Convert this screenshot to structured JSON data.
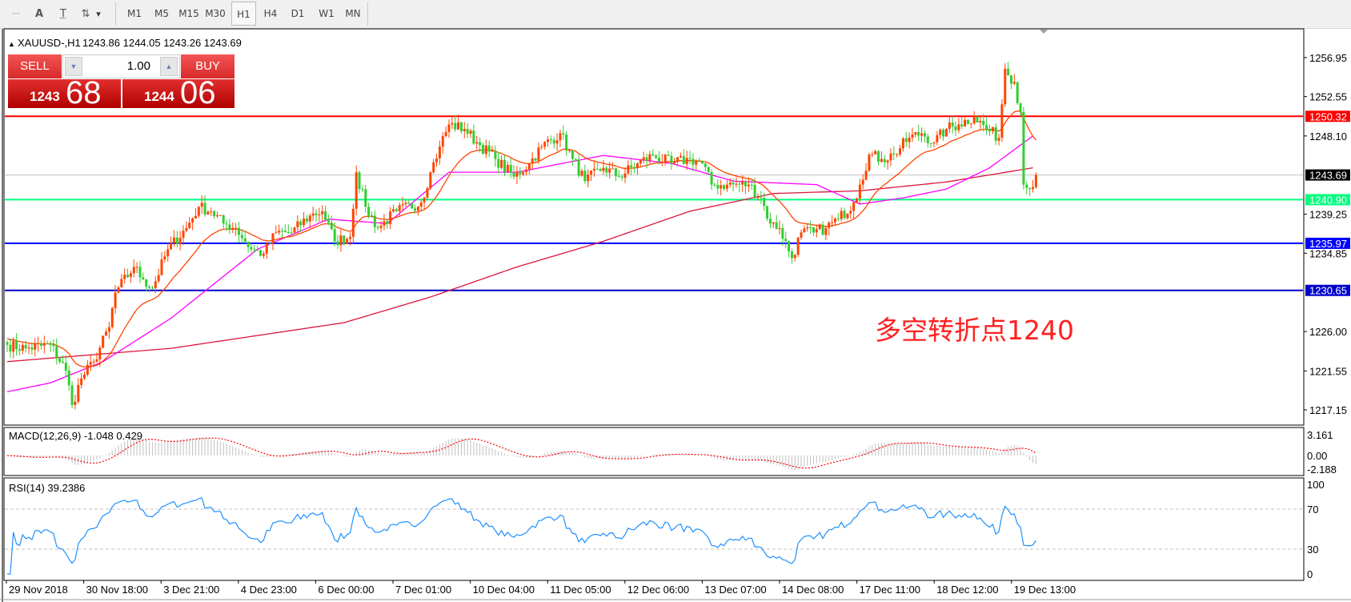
{
  "toolbar": {
    "tools": [
      {
        "name": "grid-properties-icon",
        "glyph": "⋯"
      },
      {
        "name": "text-icon",
        "glyph": "A"
      },
      {
        "name": "text-label-icon",
        "glyph": "T"
      },
      {
        "name": "arrows-icon",
        "glyph": "⇅"
      }
    ],
    "dropdown_glyph": "▾",
    "timeframes": [
      "M1",
      "M5",
      "M15",
      "M30",
      "H1",
      "H4",
      "D1",
      "W1",
      "MN"
    ],
    "selected_timeframe": "H1"
  },
  "chart_header": {
    "arrow": "▲",
    "symbol": "XAUUSD-,H1",
    "ohlc": "1243.86 1244.05 1243.26 1243.69"
  },
  "trade_panel": {
    "sell_label": "SELL",
    "buy_label": "BUY",
    "lot": "1.00",
    "sell_price_big": "1243",
    "sell_price_pips": "68",
    "buy_price_big": "1244",
    "buy_price_pips": "06",
    "color": "#cc1a1a"
  },
  "annotation": {
    "text": "多空转折点1240",
    "color": "#ff2020"
  },
  "price_axis": {
    "ticks": [
      "1256.95",
      "1252.55",
      "1248.10",
      "1239.25",
      "1234.85",
      "1226.00",
      "1221.55",
      "1217.15"
    ],
    "current": {
      "value": "1243.69",
      "color": "#000000"
    },
    "levels": [
      {
        "value": "1250.32",
        "color": "#ff0000"
      },
      {
        "value": "1240.90",
        "color": "#00ff7f"
      },
      {
        "value": "1235.97",
        "color": "#0000ff"
      },
      {
        "value": "1230.65",
        "color": "#0000cd"
      }
    ]
  },
  "time_axis": [
    "29 Nov 2018",
    "30 Nov 18:00",
    "3 Dec 21:00",
    "4 Dec 23:00",
    "6 Dec 00:00",
    "7 Dec 01:00",
    "10 Dec 04:00",
    "11 Dec 05:00",
    "12 Dec 06:00",
    "13 Dec 07:00",
    "14 Dec 08:00",
    "17 Dec 11:00",
    "18 Dec 12:00",
    "19 Dec 13:00"
  ],
  "macd": {
    "label": "MACD(12,26,9) -1.048 0.429",
    "ticks": [
      "3.161",
      "0.00",
      "-2.188"
    ],
    "signal_color": "#ff0000",
    "hist_color": "#c0c0c0"
  },
  "rsi": {
    "label": "RSI(14) 39.2386",
    "ticks": [
      "100",
      "70",
      "30",
      "0"
    ],
    "color": "#1e90ff"
  },
  "chart_data": {
    "type": "candlestick",
    "symbol": "XAUUSD",
    "timeframe": "H1",
    "ylim": [
      1215.5,
      1259.0
    ],
    "bull_color": "#ff4500",
    "bear_color": "#32cd32",
    "close_path_bar_price": [
      [
        0,
        1224.5
      ],
      [
        6,
        1224.1
      ],
      [
        14,
        1224.5
      ],
      [
        19,
        1221.6
      ],
      [
        21,
        1217.7
      ],
      [
        24,
        1220.7
      ],
      [
        28,
        1222.6
      ],
      [
        33,
        1226.5
      ],
      [
        35,
        1230.4
      ],
      [
        41,
        1233.3
      ],
      [
        44,
        1231.9
      ],
      [
        47,
        1230.9
      ],
      [
        52,
        1235.3
      ],
      [
        58,
        1237.7
      ],
      [
        62,
        1240.1
      ],
      [
        66,
        1239.6
      ],
      [
        70,
        1238.2
      ],
      [
        74,
        1237.7
      ],
      [
        79,
        1235.3
      ],
      [
        83,
        1234.8
      ],
      [
        87,
        1237.2
      ],
      [
        92,
        1237.2
      ],
      [
        98,
        1239.1
      ],
      [
        102,
        1239.6
      ],
      [
        106,
        1236.2
      ],
      [
        111,
        1236.7
      ],
      [
        113,
        1244.0
      ],
      [
        116,
        1240.1
      ],
      [
        120,
        1237.7
      ],
      [
        126,
        1239.6
      ],
      [
        134,
        1240.6
      ],
      [
        137,
        1244.0
      ],
      [
        140,
        1246.9
      ],
      [
        143,
        1249.4
      ],
      [
        148,
        1248.9
      ],
      [
        152,
        1247.4
      ],
      [
        158,
        1245.5
      ],
      [
        164,
        1243.5
      ],
      [
        169,
        1245.0
      ],
      [
        173,
        1246.9
      ],
      [
        179,
        1248.4
      ],
      [
        183,
        1245.5
      ],
      [
        187,
        1243.0
      ],
      [
        193,
        1244.5
      ],
      [
        198,
        1243.5
      ],
      [
        204,
        1245.0
      ],
      [
        209,
        1245.9
      ],
      [
        215,
        1245.0
      ],
      [
        221,
        1245.5
      ],
      [
        225,
        1245.0
      ],
      [
        228,
        1242.6
      ],
      [
        233,
        1242.6
      ],
      [
        240,
        1242.6
      ],
      [
        244,
        1241.1
      ],
      [
        247,
        1238.2
      ],
      [
        250,
        1237.7
      ],
      [
        254,
        1234.3
      ],
      [
        257,
        1237.2
      ],
      [
        261,
        1237.2
      ],
      [
        265,
        1237.7
      ],
      [
        269,
        1238.7
      ],
      [
        274,
        1240.6
      ],
      [
        276,
        1242.6
      ],
      [
        279,
        1246.0
      ],
      [
        283,
        1245.5
      ],
      [
        287,
        1246.0
      ],
      [
        292,
        1247.9
      ],
      [
        296,
        1248.4
      ],
      [
        300,
        1247.4
      ],
      [
        304,
        1248.9
      ],
      [
        308,
        1249.4
      ],
      [
        313,
        1250.3
      ],
      [
        317,
        1248.9
      ],
      [
        321,
        1247.9
      ],
      [
        323,
        1255.7
      ],
      [
        326,
        1254.2
      ],
      [
        328,
        1250.8
      ],
      [
        329,
        1242.6
      ],
      [
        331,
        1242.1
      ],
      [
        333,
        1243.69
      ]
    ],
    "ma_fast": "computed from closes",
    "ma_medium_color": "#ff00ff",
    "ma_medium_bar_price": [
      [
        0,
        1219.2
      ],
      [
        14,
        1220.2
      ],
      [
        31,
        1222.6
      ],
      [
        53,
        1227.5
      ],
      [
        81,
        1235.3
      ],
      [
        104,
        1238.7
      ],
      [
        123,
        1238.2
      ],
      [
        143,
        1244.0
      ],
      [
        165,
        1244.0
      ],
      [
        193,
        1245.9
      ],
      [
        215,
        1245.0
      ],
      [
        235,
        1243.0
      ],
      [
        262,
        1242.6
      ],
      [
        276,
        1240.4
      ],
      [
        290,
        1241.1
      ],
      [
        304,
        1242.1
      ],
      [
        318,
        1244.5
      ],
      [
        332,
        1248.1
      ]
    ],
    "ma_slow_color": "#dc143c",
    "ma_slow_bar_price": [
      [
        0,
        1222.6
      ],
      [
        53,
        1224.1
      ],
      [
        109,
        1227.0
      ],
      [
        137,
        1229.9
      ],
      [
        165,
        1233.3
      ],
      [
        193,
        1236.2
      ],
      [
        221,
        1239.6
      ],
      [
        248,
        1241.6
      ],
      [
        276,
        1241.9
      ],
      [
        304,
        1242.9
      ],
      [
        332,
        1244.5
      ]
    ],
    "ma_fast_color": "#ff4500"
  }
}
